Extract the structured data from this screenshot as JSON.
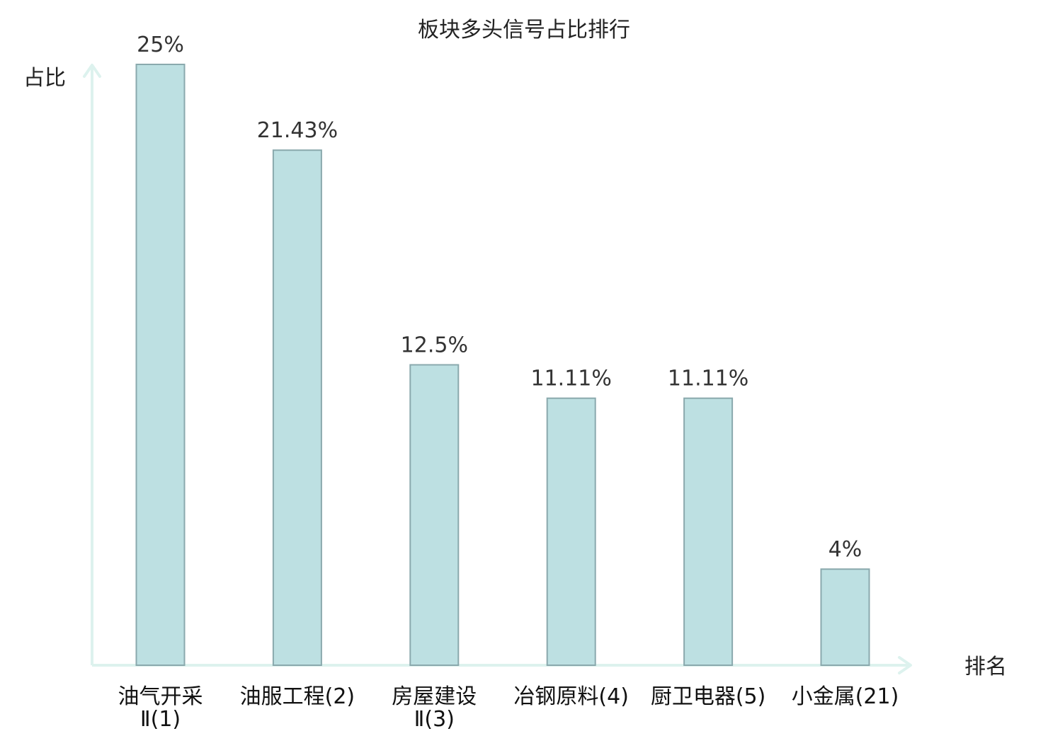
{
  "chart_data": {
    "type": "bar",
    "title": "板块多头信号占比排行",
    "ylabel": "占比",
    "xlabel": "排名",
    "categories": [
      [
        "油气开采",
        "Ⅱ(1)"
      ],
      [
        "油服工程(2)"
      ],
      [
        "房屋建设",
        "Ⅱ(3)"
      ],
      [
        "冶钢原料(4)"
      ],
      [
        "厨卫电器(5)"
      ],
      [
        "小金属(21)"
      ]
    ],
    "values": [
      25,
      21.43,
      12.5,
      11.11,
      11.11,
      4
    ],
    "value_labels": [
      "25%",
      "21.43%",
      "12.5%",
      "11.11%",
      "11.11%",
      "4%"
    ],
    "ylim": [
      0,
      25
    ],
    "grid": false,
    "colors": {
      "bar_fill": "#bde0e2",
      "bar_stroke": "#8aa9ad",
      "axis": "#ddf2ee",
      "text": "#222222",
      "highlight_text": "#dd1111"
    },
    "highlight_index": 5
  }
}
